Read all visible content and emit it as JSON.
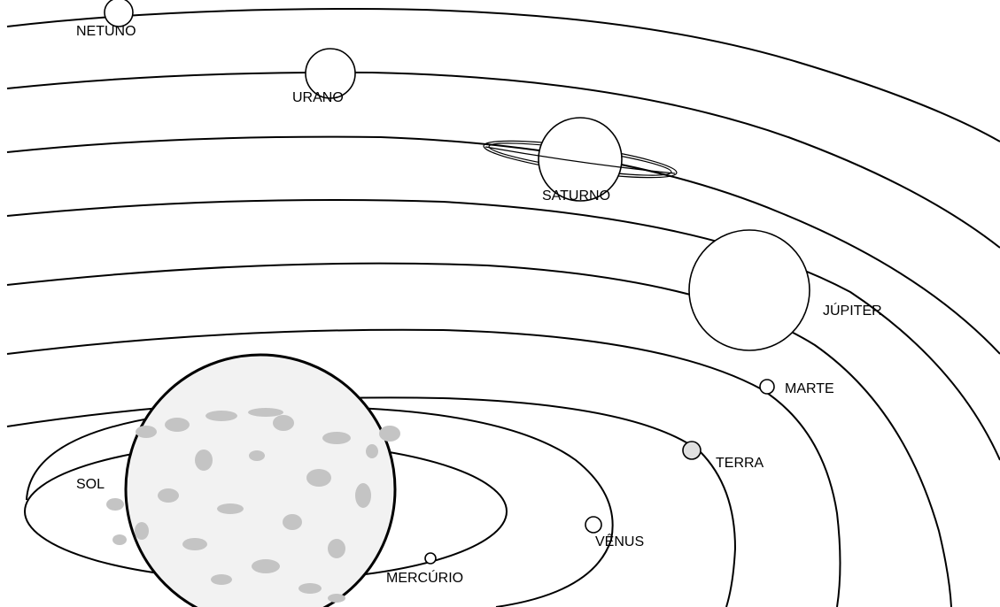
{
  "labels": {
    "sun": "SOL",
    "mercury": "MERCÚRIO",
    "venus": "VÊNUS",
    "earth": "TERRA",
    "mars": "MARTE",
    "jupiter": "JÚPITER",
    "saturn": "SATURNO",
    "uranus": "URANO",
    "neptune": "NETUNO"
  },
  "colors": {
    "line": "#000000",
    "background": "#ffffff",
    "sun_fill": "#f2f2f2",
    "sun_spots": "#c4c4c4"
  }
}
